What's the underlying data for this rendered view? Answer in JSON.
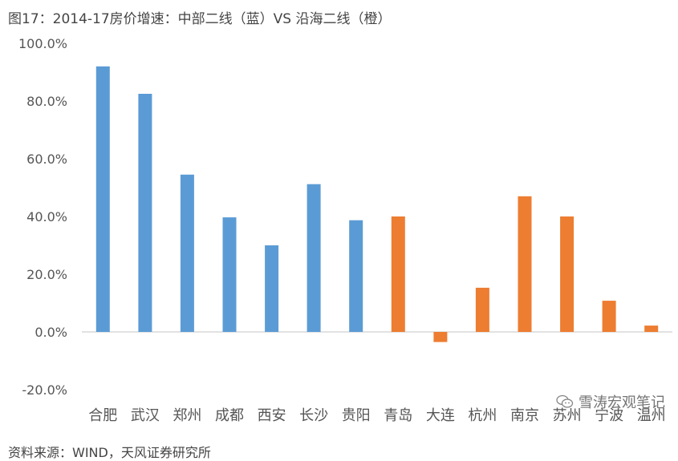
{
  "title": "图17：2014-17房价增速：中部二线（蓝）VS 沿海二线（橙）",
  "source": "资料来源：WIND，天风证券研究所",
  "watermark": "雪涛宏观笔记",
  "colors": {
    "blue": "#5B9BD5",
    "orange": "#ED7D31",
    "axis": "#d9d9d9"
  },
  "chart_data": {
    "type": "bar",
    "categories": [
      "合肥",
      "武汉",
      "郑州",
      "成都",
      "西安",
      "长沙",
      "贵阳",
      "青岛",
      "大连",
      "杭州",
      "南京",
      "苏州",
      "宁波",
      "温州"
    ],
    "values": [
      92.0,
      82.5,
      54.5,
      39.7,
      30.0,
      51.2,
      38.7,
      40.0,
      -3.5,
      15.3,
      47.0,
      40.0,
      10.8,
      2.2
    ],
    "groups": [
      "中部二线",
      "中部二线",
      "中部二线",
      "中部二线",
      "中部二线",
      "中部二线",
      "中部二线",
      "沿海二线",
      "沿海二线",
      "沿海二线",
      "沿海二线",
      "沿海二线",
      "沿海二线",
      "沿海二线"
    ],
    "group_colors": {
      "中部二线": "#5B9BD5",
      "沿海二线": "#ED7D31"
    },
    "ylim": [
      -20,
      100
    ],
    "yticks": [
      -20,
      0,
      20,
      40,
      60,
      80,
      100
    ],
    "ytick_labels": [
      "-20.0%",
      "0.0%",
      "20.0%",
      "40.0%",
      "60.0%",
      "80.0%",
      "100.0%"
    ],
    "grid": false,
    "legend": "none"
  }
}
